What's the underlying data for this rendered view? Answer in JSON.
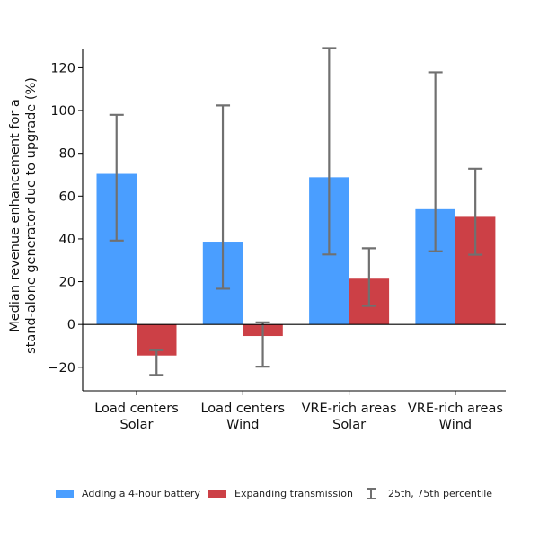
{
  "chart_data": {
    "type": "bar",
    "title": "",
    "xlabel": "",
    "ylabel": [
      "Median revenue enhancement for a",
      "stand-alone generator due to upgrade (%)"
    ],
    "categories": [
      [
        "Load centers",
        "Solar"
      ],
      [
        "Load centers",
        "Wind"
      ],
      [
        "VRE-rich areas",
        "Solar"
      ],
      [
        "VRE-rich areas",
        "Wind"
      ]
    ],
    "series": [
      {
        "name": "Adding a 4-hour battery",
        "color": "#4a9eff",
        "values": [
          70.4,
          38.7,
          68.8,
          53.9
        ],
        "p25": [
          39.2,
          16.7,
          32.7,
          34.2
        ],
        "p75": [
          98.0,
          102.4,
          129.2,
          117.9
        ]
      },
      {
        "name": "Expanding transmission",
        "color": "#cc4046",
        "values": [
          -14.5,
          -5.4,
          21.4,
          50.3
        ],
        "p25": [
          -23.6,
          -19.7,
          8.7,
          32.6
        ],
        "p75": [
          -12.0,
          1.0,
          35.6,
          72.8
        ]
      }
    ],
    "errorbar": {
      "label": "25th, 75th percentile",
      "color": "#707070"
    },
    "ylim": [
      -31,
      129
    ],
    "yticks": [
      -20,
      0,
      20,
      40,
      60,
      80,
      100,
      120
    ],
    "ytick_labels": [
      "−20",
      "0",
      "20",
      "40",
      "60",
      "80",
      "100",
      "120"
    ],
    "grid": false,
    "zero_line": true,
    "legend_position": "bottom"
  }
}
